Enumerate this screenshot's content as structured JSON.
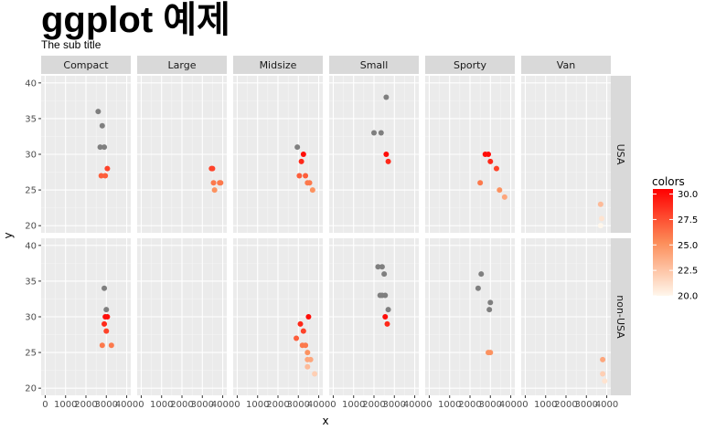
{
  "chart_data": {
    "type": "scatter",
    "title": "ggplot 예제",
    "subtitle": "The sub title",
    "xlabel": "x",
    "ylabel": "y",
    "xlim": [
      0,
      4000
    ],
    "ylim": [
      19,
      41
    ],
    "x_ticks": [
      0,
      1000,
      2000,
      3000,
      4000
    ],
    "x_tick_labels": [
      "0",
      "1000",
      "2000",
      "3000",
      "4000"
    ],
    "y_ticks": [
      20,
      25,
      30,
      35,
      40
    ],
    "y_tick_labels": [
      "20",
      "25",
      "30",
      "35",
      "40"
    ],
    "grid": true,
    "colour_legend": {
      "title": "colors",
      "limits": [
        20,
        30.5
      ],
      "breaks": [
        20,
        22.5,
        25,
        27.5,
        30
      ],
      "break_labels": [
        "20.0",
        "22.5",
        "25.0",
        "27.5",
        "30.0"
      ],
      "low_color": "#fff7ec",
      "mid_color": "#fc8d59",
      "high_color": "#ff0000",
      "na_color": "#7f7f7f",
      "position": "right"
    },
    "facet_columns": [
      "Compact",
      "Large",
      "Midsize",
      "Small",
      "Sporty",
      "Van"
    ],
    "facet_rows": [
      "USA",
      "non-USA"
    ],
    "panels": [
      {
        "row": "USA",
        "col": "Compact",
        "points": [
          [
            2600,
            36,
            null
          ],
          [
            2800,
            34,
            null
          ],
          [
            2700,
            31,
            null
          ],
          [
            2900,
            31,
            null
          ],
          [
            2750,
            27,
            27
          ],
          [
            2950,
            27,
            27
          ],
          [
            3050,
            28,
            28
          ]
        ]
      },
      {
        "row": "USA",
        "col": "Large",
        "points": [
          [
            3450,
            28,
            28
          ],
          [
            3500,
            28,
            28
          ],
          [
            3550,
            26,
            26
          ],
          [
            3600,
            25,
            25
          ],
          [
            3850,
            26,
            26
          ],
          [
            3900,
            26,
            26
          ]
        ]
      },
      {
        "row": "USA",
        "col": "Midsize",
        "points": [
          [
            2950,
            31,
            null
          ],
          [
            3250,
            30,
            30
          ],
          [
            3150,
            29,
            29
          ],
          [
            3050,
            27,
            27
          ],
          [
            3350,
            27,
            27
          ],
          [
            3450,
            26,
            26
          ],
          [
            3550,
            26,
            26
          ],
          [
            3700,
            25,
            25
          ]
        ]
      },
      {
        "row": "USA",
        "col": "Small",
        "points": [
          [
            2600,
            38,
            null
          ],
          [
            2000,
            33,
            null
          ],
          [
            2350,
            33,
            null
          ],
          [
            2600,
            30,
            30
          ],
          [
            2700,
            29,
            29
          ]
        ]
      },
      {
        "row": "USA",
        "col": "Sporty",
        "points": [
          [
            2750,
            30,
            30
          ],
          [
            2900,
            30,
            30
          ],
          [
            3000,
            29,
            29
          ],
          [
            3300,
            28,
            28
          ],
          [
            2500,
            26,
            26
          ],
          [
            3450,
            25,
            25
          ],
          [
            3700,
            24,
            24
          ]
        ]
      },
      {
        "row": "USA",
        "col": "Van",
        "points": [
          [
            3700,
            23,
            23
          ],
          [
            3750,
            21,
            21
          ],
          [
            3700,
            20,
            20
          ]
        ]
      },
      {
        "row": "non-USA",
        "col": "Compact",
        "points": [
          [
            2900,
            34,
            null
          ],
          [
            3000,
            31,
            null
          ],
          [
            2950,
            30,
            30
          ],
          [
            3050,
            30,
            30
          ],
          [
            2900,
            29,
            29
          ],
          [
            3000,
            28,
            28
          ],
          [
            2800,
            26,
            26
          ],
          [
            3250,
            26,
            26
          ]
        ]
      },
      {
        "row": "non-USA",
        "col": "Midsize",
        "points": [
          [
            3100,
            29,
            29
          ],
          [
            3250,
            28,
            28
          ],
          [
            2900,
            27,
            27
          ],
          [
            3200,
            26,
            26
          ],
          [
            3350,
            26,
            26
          ],
          [
            3500,
            30,
            30
          ],
          [
            3450,
            25,
            25
          ],
          [
            3450,
            24,
            24
          ],
          [
            3600,
            24,
            24
          ],
          [
            3450,
            23,
            23
          ],
          [
            3800,
            22,
            22
          ]
        ]
      },
      {
        "row": "non-USA",
        "col": "Small",
        "points": [
          [
            2200,
            37,
            null
          ],
          [
            2400,
            37,
            null
          ],
          [
            2500,
            36,
            null
          ],
          [
            2300,
            33,
            null
          ],
          [
            2400,
            33,
            null
          ],
          [
            2550,
            33,
            null
          ],
          [
            2700,
            31,
            null
          ],
          [
            2550,
            30,
            30
          ],
          [
            2650,
            29,
            29
          ]
        ]
      },
      {
        "row": "non-USA",
        "col": "Sporty",
        "points": [
          [
            2550,
            36,
            null
          ],
          [
            2400,
            34,
            null
          ],
          [
            3000,
            32,
            null
          ],
          [
            2950,
            31,
            null
          ],
          [
            2900,
            25,
            25
          ],
          [
            3000,
            25,
            25
          ]
        ]
      },
      {
        "row": "non-USA",
        "col": "Van",
        "points": [
          [
            3800,
            24,
            24
          ],
          [
            3800,
            22,
            22
          ],
          [
            3900,
            21,
            21
          ]
        ]
      }
    ]
  }
}
